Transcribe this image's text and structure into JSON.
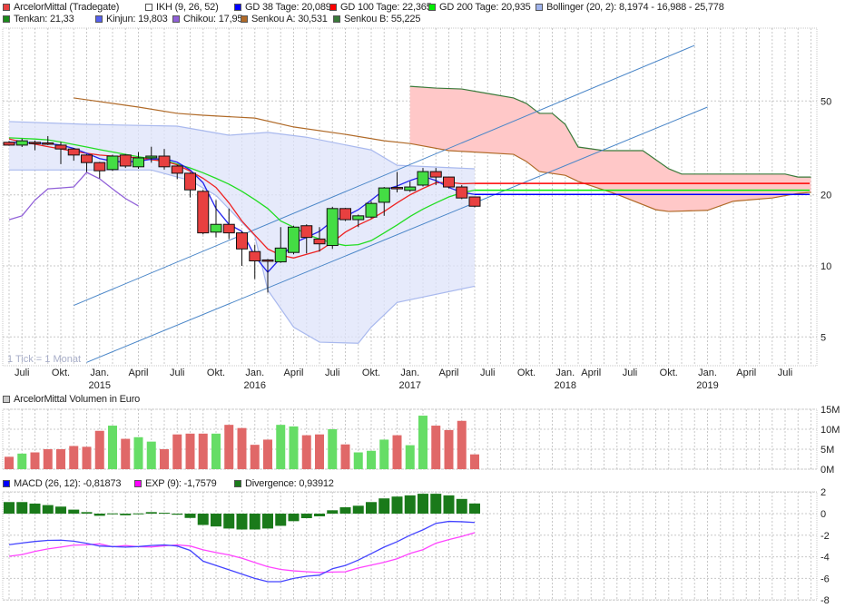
{
  "legend_main_row1": [
    {
      "label": "ArcelorMittal (Tradegate)",
      "color": "#e84040"
    },
    {
      "label": "IKH (9, 26, 52)",
      "color": "#ffffff"
    },
    {
      "label": "GD 38 Tage: 20,089",
      "color": "#0000ff"
    },
    {
      "label": "GD 100 Tage: 22,365",
      "color": "#ff0000"
    },
    {
      "label": "GD 200 Tage: 20,935",
      "color": "#00ee00"
    },
    {
      "label": "Bollinger (20, 2): 8,1974 - 16,988 - 25,778",
      "color": "#a0b4ec"
    }
  ],
  "legend_main_row2": [
    {
      "label": "Tenkan: 21,33",
      "color": "#1a8a1a"
    },
    {
      "label": "Kinjun: 19,803",
      "color": "#5560ee"
    },
    {
      "label": "Chikou: 17,95",
      "color": "#9060d8"
    },
    {
      "label": "Senkou A: 30,531",
      "color": "#b06a28"
    },
    {
      "label": "Senkou B: 55,225",
      "color": "#3a7a3a"
    }
  ],
  "legend_volume": {
    "label": "ArcelorMittal Volumen in Euro",
    "color": "#cccccc"
  },
  "legend_macd": [
    {
      "label": "MACD (26, 12): -0,81873",
      "color": "#0000ff"
    },
    {
      "label": "EXP (9): -1,7579",
      "color": "#ff00ff"
    },
    {
      "label": "Divergence: 0,93912",
      "color": "#1a7a1a"
    }
  ],
  "tick_note": "1 Tick = 1 Monat",
  "colors": {
    "up": "#44dd44",
    "down": "#e84040",
    "vol_up": "#66dd66",
    "vol_down": "#e06868",
    "cloud": "#ffc8c8",
    "bollinger": "#dde3fa",
    "channel": "#4a86c8",
    "divergence": "#1a7a1a",
    "macd": "#4444ff",
    "exp": "#ff44ff"
  },
  "chart_data": [
    {
      "type": "candlestick",
      "title": "ArcelorMittal (Tradegate)",
      "yscale": "log",
      "ylim": [
        3.8,
        100
      ],
      "yticks": [
        {
          "value": 50,
          "label": "50"
        },
        {
          "value": 20,
          "label": "20"
        },
        {
          "value": 10,
          "label": "10"
        },
        {
          "value": 5,
          "label": "5"
        }
      ],
      "xrange": [
        "2014-06",
        "2019-08"
      ],
      "xticks": [
        {
          "month": "2014-07",
          "label": "Juli"
        },
        {
          "month": "2014-10",
          "label": "Okt."
        },
        {
          "month": "2015-01",
          "label": "Jan.",
          "year": "2015"
        },
        {
          "month": "2015-04",
          "label": "April"
        },
        {
          "month": "2015-07",
          "label": "Juli"
        },
        {
          "month": "2015-10",
          "label": "Okt."
        },
        {
          "month": "2016-01",
          "label": "Jan.",
          "year": "2016"
        },
        {
          "month": "2016-04",
          "label": "April"
        },
        {
          "month": "2016-07",
          "label": "Juli"
        },
        {
          "month": "2016-10",
          "label": "Okt."
        },
        {
          "month": "2017-01",
          "label": "Jan.",
          "year": "2017"
        },
        {
          "month": "2017-04",
          "label": "April"
        },
        {
          "month": "2017-07",
          "label": "Juli"
        },
        {
          "month": "2017-10",
          "label": "Okt."
        },
        {
          "month": "2018-01",
          "label": "Jan.",
          "year": "2018"
        },
        {
          "month": "2018-03",
          "label": "April"
        },
        {
          "month": "2018-06",
          "label": "Juli"
        },
        {
          "month": "2018-09",
          "label": "Okt."
        },
        {
          "month": "2018-12",
          "label": "Jan.",
          "year": "2019"
        },
        {
          "month": "2019-03",
          "label": "April"
        },
        {
          "month": "2019-06",
          "label": "Juli"
        }
      ],
      "columns": [
        "month",
        "open",
        "high",
        "low",
        "close"
      ],
      "candles": [
        [
          "2014-06",
          33.4,
          33.8,
          32.3,
          32.5
        ],
        [
          "2014-07",
          32.5,
          34.6,
          31.9,
          33.9
        ],
        [
          "2014-08",
          33.4,
          34.0,
          30.9,
          33.0
        ],
        [
          "2014-09",
          33.2,
          35.5,
          32.5,
          32.9
        ],
        [
          "2014-10",
          32.5,
          33.5,
          27.0,
          31.3
        ],
        [
          "2014-11",
          31.3,
          31.6,
          27.9,
          29.5
        ],
        [
          "2014-12",
          29.5,
          29.8,
          25.0,
          27.4
        ],
        [
          "2015-01",
          27.4,
          27.6,
          23.5,
          25.3
        ],
        [
          "2015-02",
          25.6,
          29.6,
          25.3,
          29.2
        ],
        [
          "2015-03",
          29.5,
          29.8,
          26.0,
          26.5
        ],
        [
          "2015-04",
          26.3,
          30.4,
          25.8,
          28.7
        ],
        [
          "2015-05",
          28.7,
          32.0,
          27.4,
          29.2
        ],
        [
          "2015-06",
          29.2,
          31.3,
          25.6,
          26.3
        ],
        [
          "2015-07",
          26.5,
          26.8,
          23.3,
          24.7
        ],
        [
          "2015-08",
          24.7,
          24.9,
          19.5,
          21.0
        ],
        [
          "2015-09",
          20.7,
          21.0,
          13.6,
          13.8
        ],
        [
          "2015-10",
          13.9,
          19.0,
          13.2,
          15.0
        ],
        [
          "2015-11",
          15.0,
          17.5,
          13.0,
          13.8
        ],
        [
          "2015-12",
          13.8,
          14.0,
          10.0,
          11.8
        ],
        [
          "2016-01",
          11.5,
          12.3,
          8.8,
          10.5
        ],
        [
          "2016-02",
          10.6,
          10.7,
          7.7,
          10.5
        ],
        [
          "2016-03",
          10.4,
          14.6,
          10.3,
          11.9
        ],
        [
          "2016-04",
          11.4,
          14.8,
          11.2,
          14.6
        ],
        [
          "2016-05",
          14.8,
          15.0,
          11.3,
          13.2
        ],
        [
          "2016-06",
          13.0,
          14.6,
          11.5,
          12.4
        ],
        [
          "2016-07",
          12.2,
          17.8,
          11.8,
          17.5
        ],
        [
          "2016-08",
          17.5,
          17.6,
          15.5,
          15.7
        ],
        [
          "2016-09",
          15.7,
          16.5,
          14.6,
          16.3
        ],
        [
          "2016-10",
          16.1,
          18.8,
          15.9,
          18.4
        ],
        [
          "2016-11",
          18.6,
          21.6,
          16.3,
          21.4
        ],
        [
          "2016-12",
          21.5,
          25.0,
          20.5,
          21.4
        ],
        [
          "2017-01",
          20.9,
          22.8,
          20.6,
          21.6
        ],
        [
          "2017-02",
          22.0,
          26.0,
          21.7,
          25.1
        ],
        [
          "2017-03",
          25.1,
          26.0,
          22.0,
          23.8
        ],
        [
          "2017-04",
          23.8,
          23.9,
          21.3,
          21.6
        ],
        [
          "2017-05",
          21.6,
          22.0,
          19.2,
          19.4
        ],
        [
          "2017-06",
          19.6,
          19.7,
          17.7,
          17.9
        ]
      ],
      "gd38": [
        33.4,
        33.3,
        33.2,
        33.0,
        32.5,
        31.5,
        30.0,
        28.5,
        27.8,
        27.5,
        27.8,
        28.3,
        28.5,
        27.5,
        25.5,
        22.5,
        17.5,
        15.0,
        14.0,
        11.0,
        9.4,
        10.8,
        12.5,
        13.2,
        14.0,
        15.5,
        16.2,
        17.3,
        19.0,
        21.0,
        21.8,
        23.0,
        24.0,
        23.0,
        21.5,
        20.5,
        20.09
      ],
      "gd100": [
        34.5,
        33.5,
        32.8,
        32.0,
        31.3,
        30.6,
        30.0,
        29.5,
        29.2,
        29.0,
        28.7,
        28.2,
        27.8,
        26.8,
        25.2,
        23.5,
        21.5,
        18.5,
        15.5,
        13.5,
        11.8,
        11.1,
        10.8,
        11.2,
        11.6,
        12.6,
        13.9,
        14.9,
        15.8,
        17.0,
        18.5,
        20.0,
        21.3,
        22.5,
        22.6,
        22.3,
        22.37
      ],
      "gd200": [
        34.9,
        34.7,
        34.5,
        34.2,
        33.5,
        32.7,
        31.9,
        31.1,
        30.4,
        29.7,
        29.0,
        28.5,
        28.0,
        27.0,
        26.0,
        24.8,
        23.5,
        22.2,
        20.7,
        19.1,
        17.5,
        15.5,
        14.6,
        13.6,
        13.0,
        12.5,
        12.2,
        12.3,
        12.8,
        13.8,
        14.9,
        16.2,
        17.4,
        18.5,
        19.6,
        20.4,
        20.94
      ],
      "projections": [
        {
          "name": "GD 38",
          "value": 20.089,
          "color": "#0000ff"
        },
        {
          "name": "GD 100",
          "value": 22.365,
          "color": "#ff0000"
        },
        {
          "name": "GD 200",
          "value": 20.935,
          "color": "#00ee00"
        }
      ],
      "bollinger_upper": [
        [
          "2014-06",
          40.9
        ],
        [
          "2014-12",
          39.8
        ],
        [
          "2015-07",
          39.1
        ],
        [
          "2015-11",
          35.8
        ],
        [
          "2016-02",
          36.8
        ],
        [
          "2016-05",
          35.1
        ],
        [
          "2016-10",
          31.0
        ],
        [
          "2016-12",
          26.7
        ],
        [
          "2017-06",
          25.8
        ]
      ],
      "bollinger_lower": [
        [
          "2014-06",
          25.5
        ],
        [
          "2015-05",
          25.5
        ],
        [
          "2015-08",
          23.0
        ],
        [
          "2015-10",
          19.9
        ],
        [
          "2016-01",
          13.4
        ],
        [
          "2016-02",
          7.9
        ],
        [
          "2016-04",
          5.5
        ],
        [
          "2016-06",
          4.75
        ],
        [
          "2016-09",
          4.7
        ],
        [
          "2016-10",
          5.5
        ],
        [
          "2016-12",
          7.0
        ],
        [
          "2017-06",
          8.2
        ]
      ],
      "chikou": [
        [
          "2014-06",
          15.7
        ],
        [
          "2014-07",
          16.3
        ],
        [
          "2014-08",
          19.0
        ],
        [
          "2014-09",
          21.2
        ],
        [
          "2014-10",
          21.4
        ],
        [
          "2014-11",
          21.6
        ],
        [
          "2014-12",
          24.9
        ],
        [
          "2015-01",
          23.4
        ],
        [
          "2015-02",
          21.2
        ],
        [
          "2015-03",
          19.3
        ],
        [
          "2015-04",
          17.95
        ]
      ],
      "senkou_a": [
        [
          "2014-11",
          51.5
        ],
        [
          "2014-12",
          50.6
        ],
        [
          "2015-04",
          47.1
        ],
        [
          "2015-07",
          44.3
        ],
        [
          "2015-09",
          43.5
        ],
        [
          "2016-01",
          42.3
        ],
        [
          "2016-04",
          38.8
        ],
        [
          "2016-08",
          36.1
        ],
        [
          "2016-11",
          33.9
        ],
        [
          "2017-01",
          33.0
        ],
        [
          "2017-04",
          30.8
        ],
        [
          "2017-09",
          29.7
        ],
        [
          "2017-10",
          27.7
        ],
        [
          "2017-11",
          25.1
        ],
        [
          "2018-01",
          24.2
        ],
        [
          "2018-02",
          22.8
        ],
        [
          "2018-05",
          20.1
        ],
        [
          "2018-08",
          17.3
        ],
        [
          "2018-09",
          17.0
        ],
        [
          "2018-12",
          17.2
        ],
        [
          "2019-02",
          18.8
        ],
        [
          "2019-05",
          19.4
        ],
        [
          "2019-07",
          20.3
        ],
        [
          "2019-08",
          20.5
        ]
      ],
      "senkou_b": [
        [
          "2017-01",
          57.7
        ],
        [
          "2017-03",
          56.7
        ],
        [
          "2017-05",
          56.2
        ],
        [
          "2017-07",
          53.8
        ],
        [
          "2017-09",
          51.5
        ],
        [
          "2017-10",
          48.8
        ],
        [
          "2017-11",
          44.3
        ],
        [
          "2017-12",
          44.3
        ],
        [
          "2018-01",
          39.8
        ],
        [
          "2018-02",
          31.9
        ],
        [
          "2018-04",
          30.8
        ],
        [
          "2018-07",
          30.8
        ],
        [
          "2018-09",
          25.8
        ],
        [
          "2018-10",
          24.5
        ],
        [
          "2019-06",
          24.5
        ],
        [
          "2019-07",
          23.8
        ],
        [
          "2019-08",
          23.8
        ]
      ],
      "trend_channel": [
        [
          [
            "2014-11",
            6.8
          ],
          [
            "2018-11",
            86
          ]
        ],
        [
          [
            "2014-12",
            3.9
          ],
          [
            "2018-12",
            47.1
          ]
        ]
      ],
      "grid": true
    },
    {
      "type": "bar",
      "title": "ArcelorMittal Volumen in Euro",
      "ylim": [
        0,
        15
      ],
      "unit": "M",
      "yticks": [
        {
          "value": 15,
          "label": "15M"
        },
        {
          "value": 10,
          "label": "10M"
        },
        {
          "value": 5,
          "label": "5M"
        },
        {
          "value": 0,
          "label": "0M"
        }
      ],
      "values": [
        3.1,
        3.9,
        4.2,
        5.0,
        5.0,
        5.8,
        5.6,
        9.6,
        10.9,
        7.6,
        8.0,
        6.9,
        5.0,
        8.7,
        8.9,
        8.9,
        8.9,
        11.1,
        10.3,
        6.1,
        7.4,
        11.1,
        10.7,
        8.5,
        8.7,
        10.0,
        6.2,
        4.2,
        4.6,
        7.4,
        8.5,
        6.0,
        13.4,
        10.9,
        9.8,
        12.1,
        3.7
      ],
      "grid": true
    },
    {
      "type": "line",
      "title": "MACD (26, 12)",
      "ylim": [
        -8,
        2
      ],
      "yticks": [
        {
          "value": 2,
          "label": "2"
        },
        {
          "value": 0,
          "label": "0"
        },
        {
          "value": -2,
          "label": "-2"
        },
        {
          "value": -4,
          "label": "-4"
        },
        {
          "value": -6,
          "label": "-6"
        },
        {
          "value": -8,
          "label": "-8"
        }
      ],
      "series": [
        {
          "name": "MACD (26, 12)",
          "values": [
            -2.88,
            -2.72,
            -2.58,
            -2.48,
            -2.46,
            -2.55,
            -2.75,
            -3.0,
            -3.05,
            -3.1,
            -3.05,
            -2.95,
            -2.9,
            -3.0,
            -3.4,
            -4.4,
            -4.8,
            -5.2,
            -5.6,
            -6.0,
            -6.3,
            -6.3,
            -6.0,
            -5.8,
            -5.7,
            -5.1,
            -4.8,
            -4.3,
            -3.7,
            -3.1,
            -2.6,
            -2.0,
            -1.5,
            -0.9,
            -0.72,
            -0.75,
            -0.82
          ]
        },
        {
          "name": "EXP (9)",
          "values": [
            -3.95,
            -3.79,
            -3.5,
            -3.27,
            -3.1,
            -2.92,
            -2.89,
            -2.8,
            -3.07,
            -2.95,
            -3.07,
            -3.09,
            -2.98,
            -2.9,
            -3.0,
            -3.35,
            -3.6,
            -3.82,
            -4.13,
            -4.53,
            -4.92,
            -5.17,
            -5.3,
            -5.38,
            -5.45,
            -5.41,
            -5.39,
            -5.03,
            -4.77,
            -4.51,
            -4.18,
            -3.69,
            -3.34,
            -2.74,
            -2.41,
            -2.11,
            -1.76
          ]
        },
        {
          "name": "Divergence",
          "type": "bar",
          "values": [
            1.07,
            1.07,
            0.93,
            0.79,
            0.65,
            0.37,
            0.14,
            -0.2,
            0.02,
            -0.15,
            0.02,
            0.14,
            0.08,
            -0.1,
            -0.4,
            -1.05,
            -1.19,
            -1.38,
            -1.47,
            -1.47,
            -1.38,
            -1.13,
            -0.7,
            -0.42,
            -0.25,
            0.31,
            0.59,
            0.73,
            1.07,
            1.41,
            1.58,
            1.69,
            1.84,
            1.84,
            1.69,
            1.36,
            0.94
          ]
        }
      ],
      "grid": true
    }
  ]
}
